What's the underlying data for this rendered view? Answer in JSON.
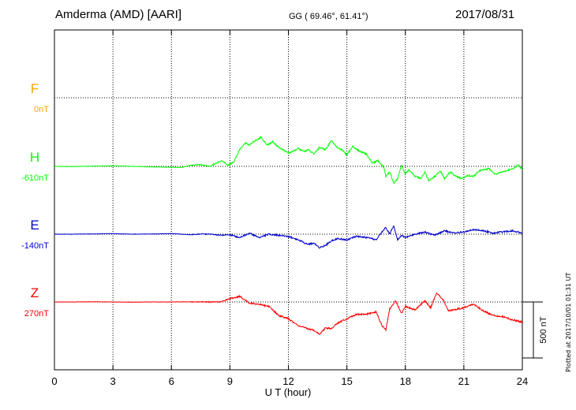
{
  "header": {
    "station": "Amderma (AMD)  [AARI]",
    "coords": "GG ( 69.46°,  61.41°)",
    "date": "2017/08/31"
  },
  "footer": {
    "plotted": "Plotted at 2017/10/01 01:31  UT"
  },
  "chart_data": {
    "type": "line",
    "title": "",
    "xlabel": "U T (hour)",
    "ylabel": "",
    "xlim": [
      0,
      24
    ],
    "x_ticks": [
      0,
      3,
      6,
      9,
      12,
      15,
      18,
      21,
      24
    ],
    "grid": true,
    "scale_bar": "500 nT",
    "scale_bar_nT": 500,
    "series": [
      {
        "name": "F",
        "baseline": "0nT",
        "color": "#ffa500",
        "values": []
      },
      {
        "name": "H",
        "baseline": "-610nT",
        "color": "#00ff00",
        "x": [
          0,
          1,
          2,
          3,
          4,
          5,
          6,
          6.5,
          7,
          7.5,
          8,
          8.3,
          8.6,
          8.9,
          9.2,
          9.5,
          9.8,
          10,
          10.3,
          10.6,
          10.9,
          11.2,
          11.5,
          11.8,
          12,
          12.2,
          12.5,
          12.8,
          13,
          13.3,
          13.6,
          13.9,
          14.2,
          14.5,
          14.8,
          15,
          15.3,
          15.6,
          16,
          16.3,
          16.6,
          16.9,
          17,
          17.2,
          17.4,
          17.6,
          17.8,
          18,
          18.2,
          18.5,
          18.8,
          19,
          19.2,
          19.5,
          19.8,
          20,
          20.3,
          20.6,
          20.9,
          21.2,
          21.5,
          21.8,
          22,
          22.3,
          22.6,
          22.9,
          23.2,
          23.5,
          23.8,
          24
        ],
        "values": [
          -610,
          -612,
          -608,
          -605,
          -610,
          -615,
          -618,
          -620,
          -600,
          -595,
          -610,
          -580,
          -560,
          -600,
          -570,
          -460,
          -400,
          -420,
          -380,
          -350,
          -420,
          -390,
          -440,
          -470,
          -490,
          -480,
          -450,
          -480,
          -460,
          -500,
          -440,
          -460,
          -380,
          -440,
          -470,
          -510,
          -430,
          -470,
          -500,
          -580,
          -560,
          -620,
          -700,
          -660,
          -760,
          -720,
          -600,
          -680,
          -640,
          -700,
          -720,
          -660,
          -740,
          -700,
          -650,
          -720,
          -660,
          -700,
          -720,
          -690,
          -700,
          -650,
          -640,
          -630,
          -680,
          -660,
          -650,
          -630,
          -600,
          -640
        ]
      },
      {
        "name": "E",
        "baseline": "-140nT",
        "color": "#0000cc",
        "x": [
          0,
          1,
          2,
          3,
          4,
          5,
          6,
          6.5,
          7,
          7.5,
          8,
          8.5,
          9,
          9.5,
          10,
          10.5,
          11,
          11.5,
          12,
          12.5,
          13,
          13.3,
          13.6,
          13.9,
          14.2,
          14.5,
          15,
          15.5,
          16,
          16.5,
          16.8,
          17,
          17.2,
          17.4,
          17.6,
          17.8,
          18,
          18.5,
          19,
          19.5,
          20,
          20.5,
          21,
          21.5,
          22,
          22.5,
          23,
          23.5,
          24
        ],
        "values": [
          -140,
          -140,
          -138,
          -135,
          -140,
          -138,
          -135,
          -140,
          -145,
          -138,
          -140,
          -150,
          -145,
          -170,
          -130,
          -170,
          -140,
          -150,
          -160,
          -190,
          -230,
          -220,
          -260,
          -240,
          -200,
          -180,
          -190,
          -160,
          -170,
          -190,
          -120,
          -80,
          -140,
          -60,
          -190,
          -150,
          -170,
          -140,
          -120,
          -150,
          -110,
          -130,
          -120,
          -100,
          -110,
          -130,
          -120,
          -110,
          -130
        ]
      },
      {
        "name": "Z",
        "baseline": "270nT",
        "color": "#ff0000",
        "x": [
          0,
          1,
          2,
          3,
          4,
          5,
          6,
          7,
          8,
          8.5,
          9,
          9.5,
          10,
          10.5,
          11,
          11.5,
          12,
          12.5,
          13,
          13.3,
          13.6,
          13.9,
          14.2,
          14.5,
          15,
          15.5,
          16,
          16.5,
          16.8,
          17,
          17.2,
          17.5,
          17.8,
          18,
          18.5,
          19,
          19.3,
          19.6,
          19.9,
          20.2,
          20.5,
          21,
          21.5,
          22,
          22.5,
          23,
          23.5,
          24
        ],
        "values": [
          270,
          270,
          272,
          270,
          268,
          270,
          270,
          272,
          270,
          270,
          300,
          320,
          260,
          250,
          230,
          150,
          120,
          60,
          30,
          20,
          -20,
          40,
          30,
          80,
          120,
          160,
          160,
          180,
          60,
          20,
          210,
          280,
          170,
          230,
          200,
          280,
          220,
          350,
          300,
          190,
          200,
          220,
          250,
          190,
          150,
          140,
          110,
          90
        ]
      }
    ]
  }
}
